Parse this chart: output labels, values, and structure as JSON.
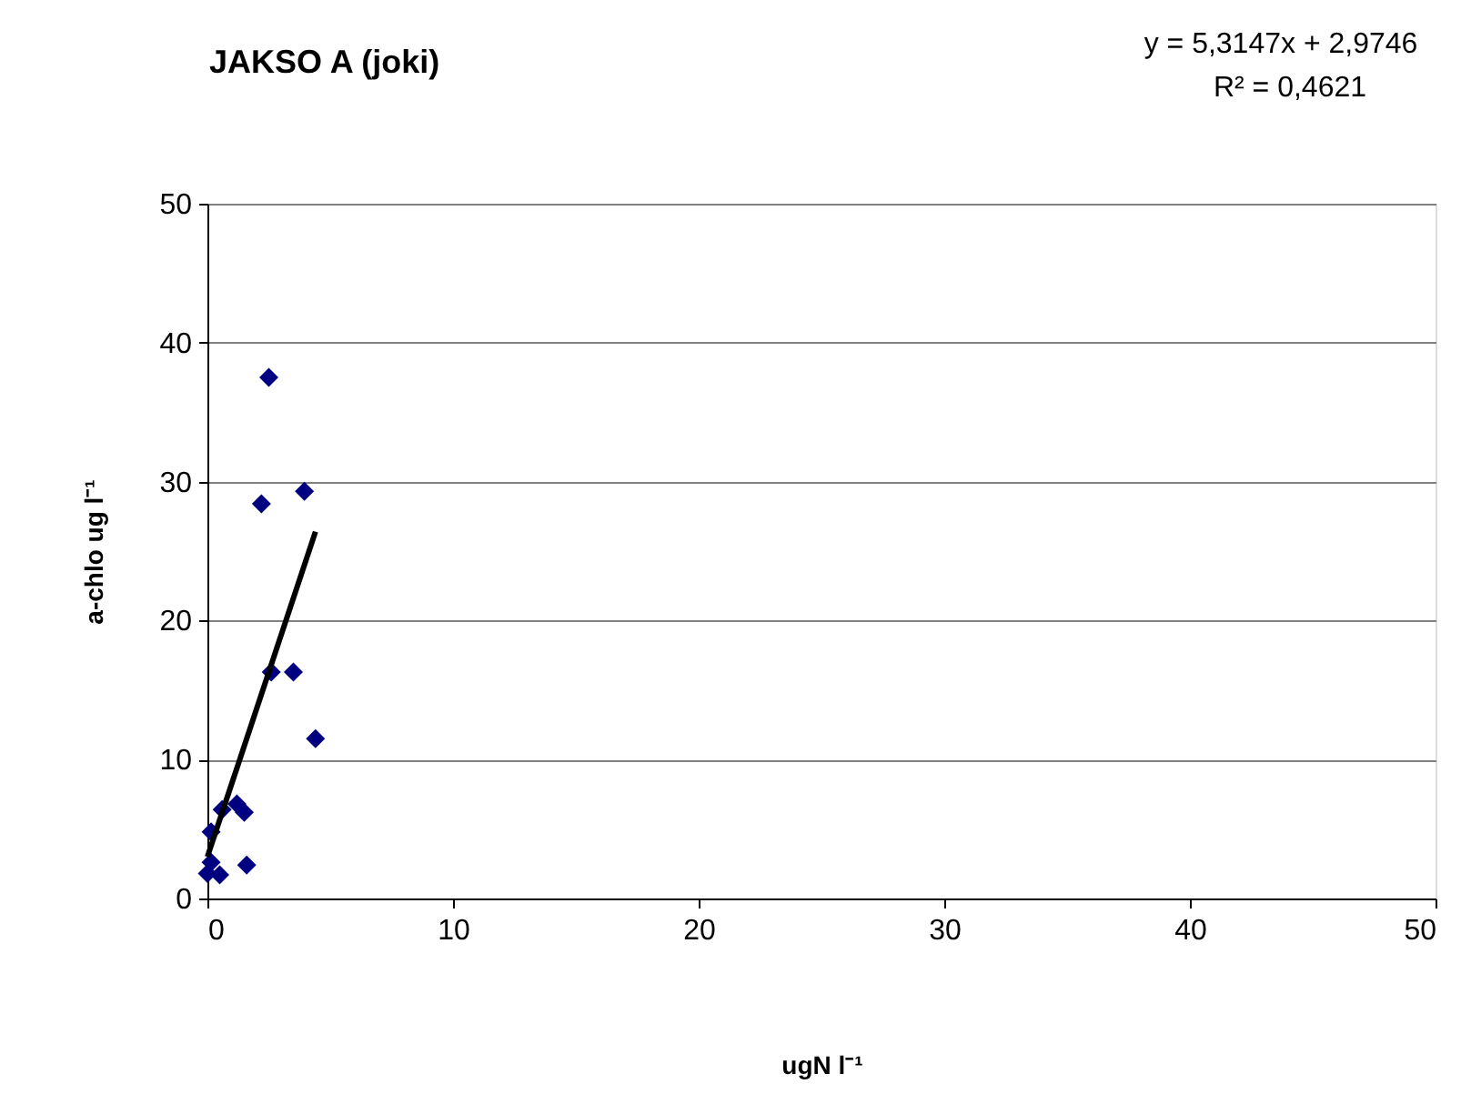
{
  "chart_data": {
    "type": "scatter",
    "title": "JAKSO A (joki)",
    "xlabel": "ugN l⁻¹",
    "ylabel": "a-chlo ug l⁻¹",
    "annotations": [
      "y = 5,3147x + 2,9746",
      "R² = 0,4621"
    ],
    "series": [
      {
        "color": "#000080",
        "marker": "diamond",
        "x": [
          2.5,
          2.2,
          3.95,
          2.6,
          3.5,
          4.4,
          0.6,
          1.2,
          1.5,
          0.15,
          1.6,
          0.15,
          0,
          0.5
        ],
        "values": [
          37.5,
          28.4,
          29.3,
          16.3,
          16.3,
          11.5,
          6.4,
          6.8,
          6.2,
          4.8,
          2.4,
          2.6,
          1.8,
          1.7
        ]
      },
      {
        "type": "line",
        "color": "#000000",
        "marker": "none",
        "x": [
          0,
          4.4
        ],
        "values": [
          3.0,
          26.4
        ]
      }
    ],
    "xlim": [
      0,
      50
    ],
    "xticks": [
      0,
      10,
      20,
      30,
      40,
      50
    ],
    "ylim": [
      0,
      50
    ],
    "yticks": [
      0,
      10,
      20,
      30,
      40,
      50
    ],
    "grid": "y"
  }
}
